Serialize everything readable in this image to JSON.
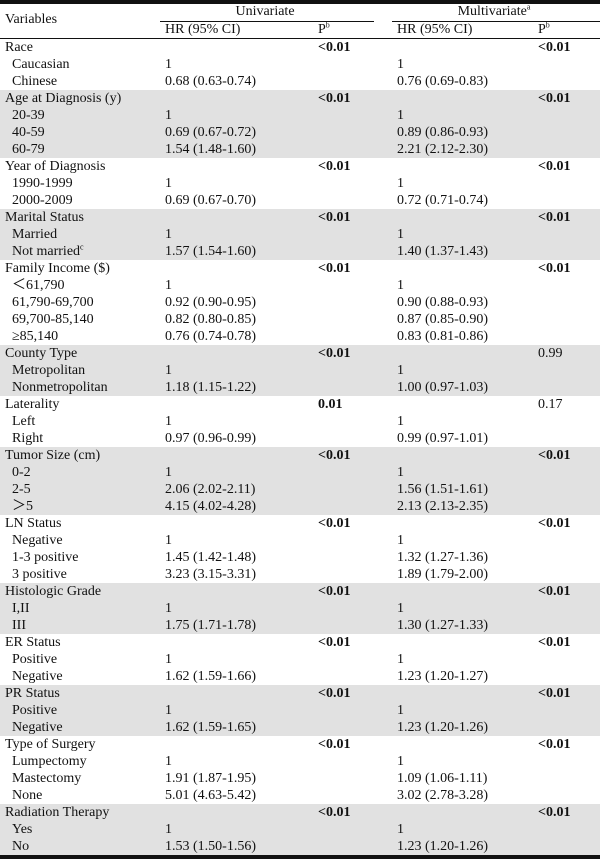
{
  "header": {
    "variables": "Variables",
    "univariate": "Univariate",
    "multivariate": "Multivariate",
    "multivariate_sup": "a",
    "hr_ci": "HR (95% CI)",
    "p": "P",
    "p_sup": "b"
  },
  "groups": [
    {
      "label": "Race",
      "p_uni": "<0.01",
      "p_uni_bold": true,
      "p_multi": "<0.01",
      "p_multi_bold": true,
      "shaded": false,
      "rows": [
        {
          "label": "Caucasian",
          "hr_uni": "1",
          "hr_multi": "1"
        },
        {
          "label": "Chinese",
          "hr_uni": "0.68 (0.63-0.74)",
          "hr_multi": "0.76 (0.69-0.83)"
        }
      ]
    },
    {
      "label": "Age at Diagnosis (y)",
      "p_uni": "<0.01",
      "p_uni_bold": true,
      "p_multi": "<0.01",
      "p_multi_bold": true,
      "shaded": true,
      "rows": [
        {
          "label": "20-39",
          "hr_uni": "1",
          "hr_multi": "1"
        },
        {
          "label": "40-59",
          "hr_uni": "0.69 (0.67-0.72)",
          "hr_multi": "0.89 (0.86-0.93)"
        },
        {
          "label": "60-79",
          "hr_uni": "1.54 (1.48-1.60)",
          "hr_multi": "2.21 (2.12-2.30)"
        }
      ]
    },
    {
      "label": "Year of Diagnosis",
      "p_uni": "<0.01",
      "p_uni_bold": true,
      "p_multi": "<0.01",
      "p_multi_bold": true,
      "shaded": false,
      "rows": [
        {
          "label": "1990-1999",
          "hr_uni": "1",
          "hr_multi": "1"
        },
        {
          "label": "2000-2009",
          "hr_uni": "0.69 (0.67-0.70)",
          "hr_multi": "0.72 (0.71-0.74)"
        }
      ]
    },
    {
      "label": "Marital Status",
      "p_uni": "<0.01",
      "p_uni_bold": true,
      "p_multi": "<0.01",
      "p_multi_bold": true,
      "shaded": true,
      "rows": [
        {
          "label": "Married",
          "hr_uni": "1",
          "hr_multi": "1"
        },
        {
          "label": "Not married",
          "label_sup": "c",
          "hr_uni": "1.57 (1.54-1.60)",
          "hr_multi": "1.40 (1.37-1.43)"
        }
      ]
    },
    {
      "label": "Family Income ($)",
      "p_uni": "<0.01",
      "p_uni_bold": true,
      "p_multi": "<0.01",
      "p_multi_bold": true,
      "shaded": false,
      "rows": [
        {
          "label": "＜61,790",
          "hr_uni": "1",
          "hr_multi": "1"
        },
        {
          "label": "61,790-69,700",
          "hr_uni": "0.92 (0.90-0.95)",
          "hr_multi": "0.90 (0.88-0.93)"
        },
        {
          "label": "69,700-85,140",
          "hr_uni": "0.82 (0.80-0.85)",
          "hr_multi": "0.87 (0.85-0.90)"
        },
        {
          "label": "≥85,140",
          "hr_uni": "0.76 (0.74-0.78)",
          "hr_multi": "0.83 (0.81-0.86)"
        }
      ]
    },
    {
      "label": "County Type",
      "p_uni": "<0.01",
      "p_uni_bold": true,
      "p_multi": "0.99",
      "p_multi_bold": false,
      "shaded": true,
      "rows": [
        {
          "label": "Metropolitan",
          "hr_uni": "1",
          "hr_multi": "1"
        },
        {
          "label": "Nonmetropolitan",
          "hr_uni": "1.18 (1.15-1.22)",
          "hr_multi": "1.00 (0.97-1.03)"
        }
      ]
    },
    {
      "label": "Laterality",
      "p_uni": "0.01",
      "p_uni_bold": true,
      "p_multi": "0.17",
      "p_multi_bold": false,
      "shaded": false,
      "rows": [
        {
          "label": "Left",
          "hr_uni": "1",
          "hr_multi": "1"
        },
        {
          "label": "Right",
          "hr_uni": "0.97 (0.96-0.99)",
          "hr_multi": "0.99 (0.97-1.01)"
        }
      ]
    },
    {
      "label": "Tumor Size (cm)",
      "p_uni": "<0.01",
      "p_uni_bold": true,
      "p_multi": "<0.01",
      "p_multi_bold": true,
      "shaded": true,
      "rows": [
        {
          "label": "0-2",
          "hr_uni": "1",
          "hr_multi": "1"
        },
        {
          "label": "2-5",
          "hr_uni": "2.06 (2.02-2.11)",
          "hr_multi": "1.56 (1.51-1.61)"
        },
        {
          "label": "＞5",
          "hr_uni": "4.15 (4.02-4.28)",
          "hr_multi": "2.13 (2.13-2.35)"
        }
      ]
    },
    {
      "label": "LN Status",
      "p_uni": "<0.01",
      "p_uni_bold": true,
      "p_multi": "<0.01",
      "p_multi_bold": true,
      "shaded": false,
      "rows": [
        {
          "label": "Negative",
          "hr_uni": "1",
          "hr_multi": "1"
        },
        {
          "label": "1-3 positive",
          "hr_uni": "1.45 (1.42-1.48)",
          "hr_multi": "1.32 (1.27-1.36)"
        },
        {
          "label": "3 positive",
          "hr_uni": "3.23 (3.15-3.31)",
          "hr_multi": "1.89 (1.79-2.00)"
        }
      ]
    },
    {
      "label": "Histologic Grade",
      "p_uni": "<0.01",
      "p_uni_bold": true,
      "p_multi": "<0.01",
      "p_multi_bold": true,
      "shaded": true,
      "rows": [
        {
          "label": "I,II",
          "hr_uni": "1",
          "hr_multi": "1"
        },
        {
          "label": "III",
          "hr_uni": "1.75 (1.71-1.78)",
          "hr_multi": "1.30 (1.27-1.33)"
        }
      ]
    },
    {
      "label": "ER Status",
      "p_uni": "<0.01",
      "p_uni_bold": true,
      "p_multi": "<0.01",
      "p_multi_bold": true,
      "shaded": false,
      "rows": [
        {
          "label": "Positive",
          "hr_uni": "1",
          "hr_multi": "1"
        },
        {
          "label": "Negative",
          "hr_uni": "1.62 (1.59-1.66)",
          "hr_multi": "1.23 (1.20-1.27)"
        }
      ]
    },
    {
      "label": "PR Status",
      "p_uni": "<0.01",
      "p_uni_bold": true,
      "p_multi": "<0.01",
      "p_multi_bold": true,
      "shaded": true,
      "rows": [
        {
          "label": "Positive",
          "hr_uni": "1",
          "hr_multi": "1"
        },
        {
          "label": "Negative",
          "hr_uni": "1.62 (1.59-1.65)",
          "hr_multi": "1.23 (1.20-1.26)"
        }
      ]
    },
    {
      "label": "Type of Surgery",
      "p_uni": "<0.01",
      "p_uni_bold": true,
      "p_multi": "<0.01",
      "p_multi_bold": true,
      "shaded": false,
      "rows": [
        {
          "label": "Lumpectomy",
          "hr_uni": "1",
          "hr_multi": "1"
        },
        {
          "label": "Mastectomy",
          "hr_uni": "1.91 (1.87-1.95)",
          "hr_multi": "1.09 (1.06-1.11)"
        },
        {
          "label": "None",
          "hr_uni": "5.01 (4.63-5.42)",
          "hr_multi": "3.02 (2.78-3.28)"
        }
      ]
    },
    {
      "label": "Radiation Therapy",
      "p_uni": "<0.01",
      "p_uni_bold": true,
      "p_multi": "<0.01",
      "p_multi_bold": true,
      "shaded": true,
      "rows": [
        {
          "label": "Yes",
          "hr_uni": "1",
          "hr_multi": "1"
        },
        {
          "label": "No",
          "hr_uni": "1.53 (1.50-1.56)",
          "hr_multi": "1.23 (1.20-1.26)"
        }
      ]
    }
  ]
}
